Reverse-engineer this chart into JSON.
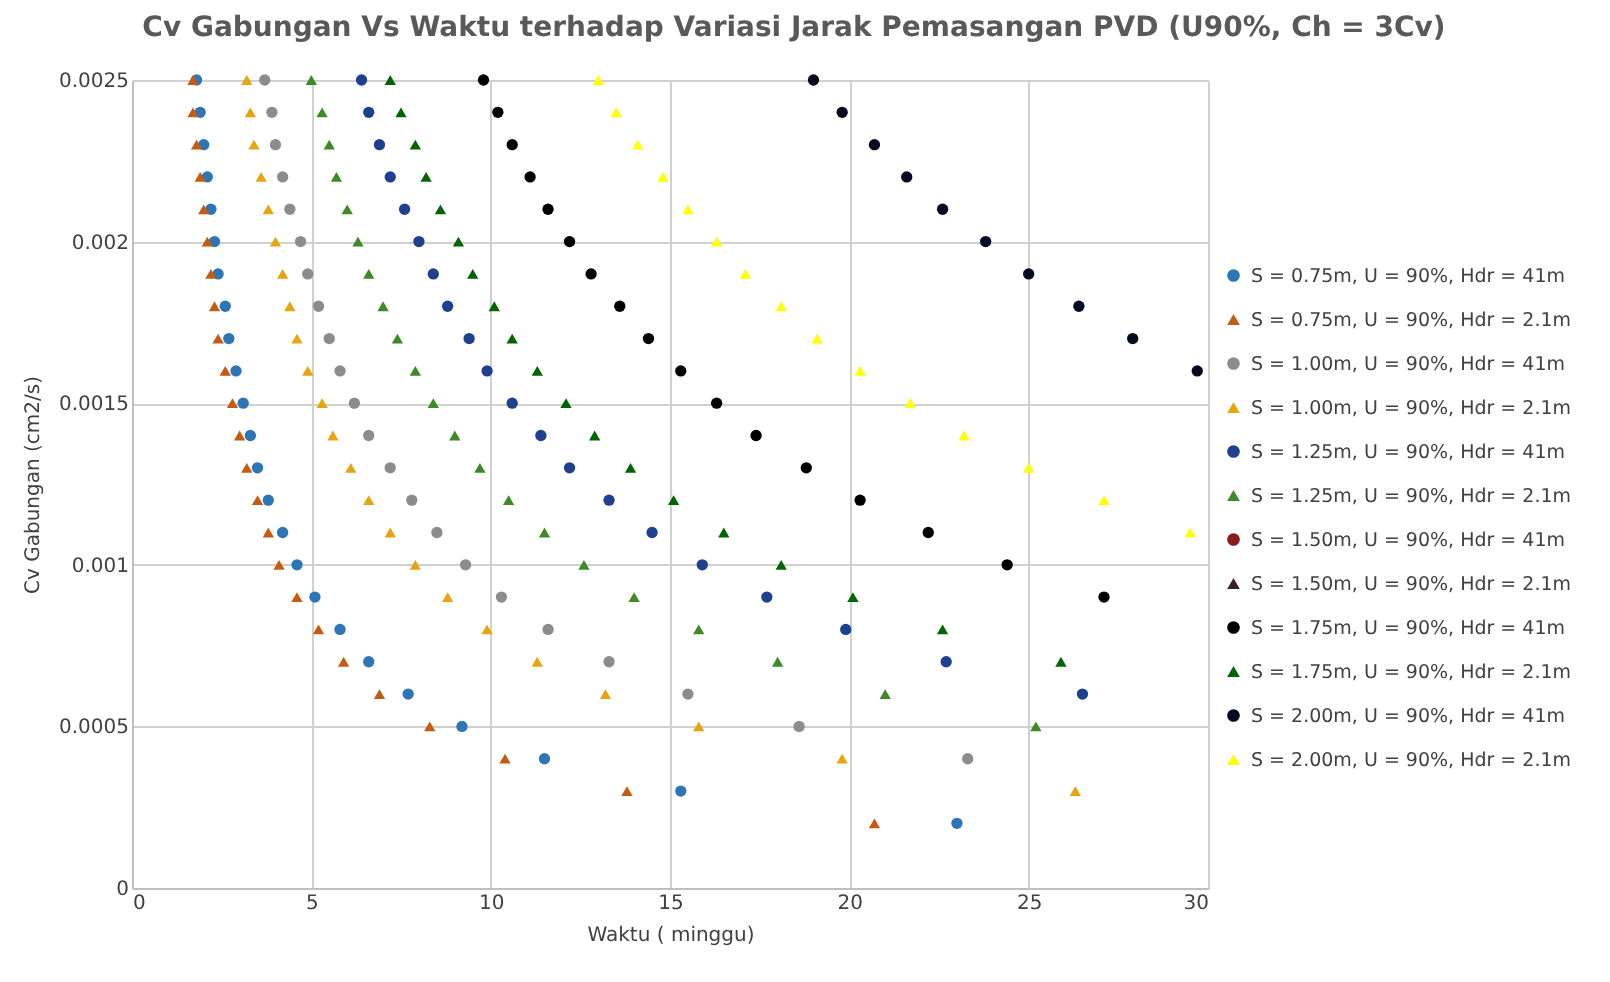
{
  "chart_data": {
    "type": "scatter",
    "title": "Cv Gabungan Vs Waktu terhadap Variasi Jarak Pemasangan PVD (U90%, Ch = 3Cv)",
    "xlabel": "Waktu ( minggu)",
    "ylabel": "Cv Gabungan (cm2/s)",
    "xlim": [
      0,
      30
    ],
    "xticks": [
      0,
      5,
      10,
      15,
      20,
      25,
      30
    ],
    "ylim": [
      0,
      0.0025
    ],
    "yticks": [
      0,
      0.0005,
      0.001,
      0.0015,
      0.002,
      0.0025
    ],
    "grid": true,
    "legend": "right",
    "series": [
      {
        "name": "S = 0.75m, U = 90%, Hdr = 41m",
        "color": "#2e75b6",
        "marker": "circle",
        "x": [
          1.8,
          1.9,
          2.0,
          2.1,
          2.2,
          2.3,
          2.4,
          2.6,
          2.7,
          2.9,
          3.1,
          3.3,
          3.5,
          3.8,
          4.2,
          4.6,
          5.1,
          5.8,
          6.6,
          7.7,
          9.2,
          11.5,
          15.3,
          23.0
        ],
        "values": [
          0.0025,
          0.0024,
          0.0023,
          0.0022,
          0.0021,
          0.002,
          0.0019,
          0.0018,
          0.0017,
          0.0016,
          0.0015,
          0.0014,
          0.0013,
          0.0012,
          0.0011,
          0.001,
          0.0009,
          0.0008,
          0.0007,
          0.0006,
          0.0005,
          0.0004,
          0.0003,
          0.0002
        ]
      },
      {
        "name": "S = 0.75m, U = 90%, Hdr = 2.1m",
        "color": "#c55a11",
        "marker": "triangle",
        "x": [
          1.7,
          1.7,
          1.8,
          1.9,
          2.0,
          2.1,
          2.2,
          2.3,
          2.4,
          2.6,
          2.8,
          3.0,
          3.2,
          3.5,
          3.8,
          4.1,
          4.6,
          5.2,
          5.9,
          6.9,
          8.3,
          10.4,
          13.8,
          20.7
        ],
        "values": [
          0.0025,
          0.0024,
          0.0023,
          0.0022,
          0.0021,
          0.002,
          0.0019,
          0.0018,
          0.0017,
          0.0016,
          0.0015,
          0.0014,
          0.0013,
          0.0012,
          0.0011,
          0.001,
          0.0009,
          0.0008,
          0.0007,
          0.0006,
          0.0005,
          0.0004,
          0.0003,
          0.0002
        ]
      },
      {
        "name": "S = 1.00m, U = 90%, Hdr = 41m",
        "color": "#8c8c8c",
        "marker": "circle",
        "x": [
          3.7,
          3.9,
          4.0,
          4.2,
          4.4,
          4.7,
          4.9,
          5.2,
          5.5,
          5.8,
          6.2,
          6.6,
          7.2,
          7.8,
          8.5,
          9.3,
          10.3,
          11.6,
          13.3,
          15.5,
          18.6,
          23.3
        ],
        "values": [
          0.0025,
          0.0024,
          0.0023,
          0.0022,
          0.0021,
          0.002,
          0.0019,
          0.0018,
          0.0017,
          0.0016,
          0.0015,
          0.0014,
          0.0013,
          0.0012,
          0.0011,
          0.001,
          0.0009,
          0.0008,
          0.0007,
          0.0006,
          0.0005,
          0.0004
        ]
      },
      {
        "name": "S = 1.00m, U = 90%, Hdr = 2.1m",
        "color": "#e6a50f",
        "marker": "triangle",
        "x": [
          3.2,
          3.3,
          3.4,
          3.6,
          3.8,
          4.0,
          4.2,
          4.4,
          4.6,
          4.9,
          5.3,
          5.6,
          6.1,
          6.6,
          7.2,
          7.9,
          8.8,
          9.9,
          11.3,
          13.2,
          15.8,
          19.8,
          26.3
        ],
        "values": [
          0.0025,
          0.0024,
          0.0023,
          0.0022,
          0.0021,
          0.002,
          0.0019,
          0.0018,
          0.0017,
          0.0016,
          0.0015,
          0.0014,
          0.0013,
          0.0012,
          0.0011,
          0.001,
          0.0009,
          0.0008,
          0.0007,
          0.0006,
          0.0005,
          0.0004,
          0.0003
        ]
      },
      {
        "name": "S = 1.25m, U = 90%, Hdr = 41m",
        "color": "#1f3f8f",
        "marker": "circle",
        "x": [
          6.4,
          6.6,
          6.9,
          7.2,
          7.6,
          8.0,
          8.4,
          8.8,
          9.4,
          9.9,
          10.6,
          11.4,
          12.2,
          13.3,
          14.5,
          15.9,
          17.7,
          19.9,
          22.7,
          26.5
        ],
        "values": [
          0.0025,
          0.0024,
          0.0023,
          0.0022,
          0.0021,
          0.002,
          0.0019,
          0.0018,
          0.0017,
          0.0016,
          0.0015,
          0.0014,
          0.0013,
          0.0012,
          0.0011,
          0.001,
          0.0009,
          0.0008,
          0.0007,
          0.0006
        ]
      },
      {
        "name": "S = 1.25m, U = 90%, Hdr = 2.1m",
        "color": "#3d8a27",
        "marker": "triangle",
        "x": [
          5.0,
          5.3,
          5.5,
          5.7,
          6.0,
          6.3,
          6.6,
          7.0,
          7.4,
          7.9,
          8.4,
          9.0,
          9.7,
          10.5,
          11.5,
          12.6,
          14.0,
          15.8,
          18.0,
          21.0,
          25.2
        ],
        "values": [
          0.0025,
          0.0024,
          0.0023,
          0.0022,
          0.0021,
          0.002,
          0.0019,
          0.0018,
          0.0017,
          0.0016,
          0.0015,
          0.0014,
          0.0013,
          0.0012,
          0.0011,
          0.001,
          0.0009,
          0.0008,
          0.0007,
          0.0006,
          0.0005
        ]
      },
      {
        "name": "S = 1.50m, U = 90%, Hdr = 41m",
        "color": "#8b1a1a",
        "marker": "circle"
      },
      {
        "name": "S = 1.50m, U = 90%, Hdr = 2.1m",
        "color": "#3b1f22",
        "marker": "triangle"
      },
      {
        "name": "S = 1.75m, U = 90%, Hdr = 41m",
        "color": "#000000",
        "marker": "circle",
        "x": [
          9.8,
          10.2,
          10.6,
          11.1,
          11.6,
          12.2,
          12.8,
          13.6,
          14.4,
          15.3,
          16.3,
          17.4,
          18.8,
          20.3,
          22.2,
          24.4,
          27.1
        ],
        "values": [
          0.0025,
          0.0024,
          0.0023,
          0.0022,
          0.0021,
          0.002,
          0.0019,
          0.0018,
          0.0017,
          0.0016,
          0.0015,
          0.0014,
          0.0013,
          0.0012,
          0.0011,
          0.001,
          0.0009
        ]
      },
      {
        "name": "S = 1.75m, U = 90%, Hdr = 2.1m",
        "color": "#006400",
        "marker": "triangle",
        "x": [
          7.2,
          7.5,
          7.9,
          8.2,
          8.6,
          9.1,
          9.5,
          10.1,
          10.6,
          11.3,
          12.1,
          12.9,
          13.9,
          15.1,
          16.5,
          18.1,
          20.1,
          22.6,
          25.9
        ],
        "values": [
          0.0025,
          0.0024,
          0.0023,
          0.0022,
          0.0021,
          0.002,
          0.0019,
          0.0018,
          0.0017,
          0.0016,
          0.0015,
          0.0014,
          0.0013,
          0.0012,
          0.0011,
          0.001,
          0.0009,
          0.0008,
          0.0007
        ]
      },
      {
        "name": "S = 2.00m, U = 90%, Hdr = 41m",
        "color": "#050a1e",
        "marker": "circle",
        "x": [
          19.0,
          19.8,
          20.7,
          21.6,
          22.6,
          23.8,
          25.0,
          26.4,
          27.9,
          29.7
        ],
        "values": [
          0.0025,
          0.0024,
          0.0023,
          0.0022,
          0.0021,
          0.002,
          0.0019,
          0.0018,
          0.0017,
          0.0016
        ]
      },
      {
        "name": "S = 2.00m, U = 90%, Hdr = 2.1m",
        "color": "#ffff00",
        "marker": "triangle",
        "x": [
          13.0,
          13.5,
          14.1,
          14.8,
          15.5,
          16.3,
          17.1,
          18.1,
          19.1,
          20.3,
          21.7,
          23.2,
          25.0,
          27.1,
          29.5
        ],
        "values": [
          0.0025,
          0.0024,
          0.0023,
          0.0022,
          0.0021,
          0.002,
          0.0019,
          0.0018,
          0.0017,
          0.0016,
          0.0015,
          0.0014,
          0.0013,
          0.0012,
          0.0011
        ]
      }
    ]
  }
}
